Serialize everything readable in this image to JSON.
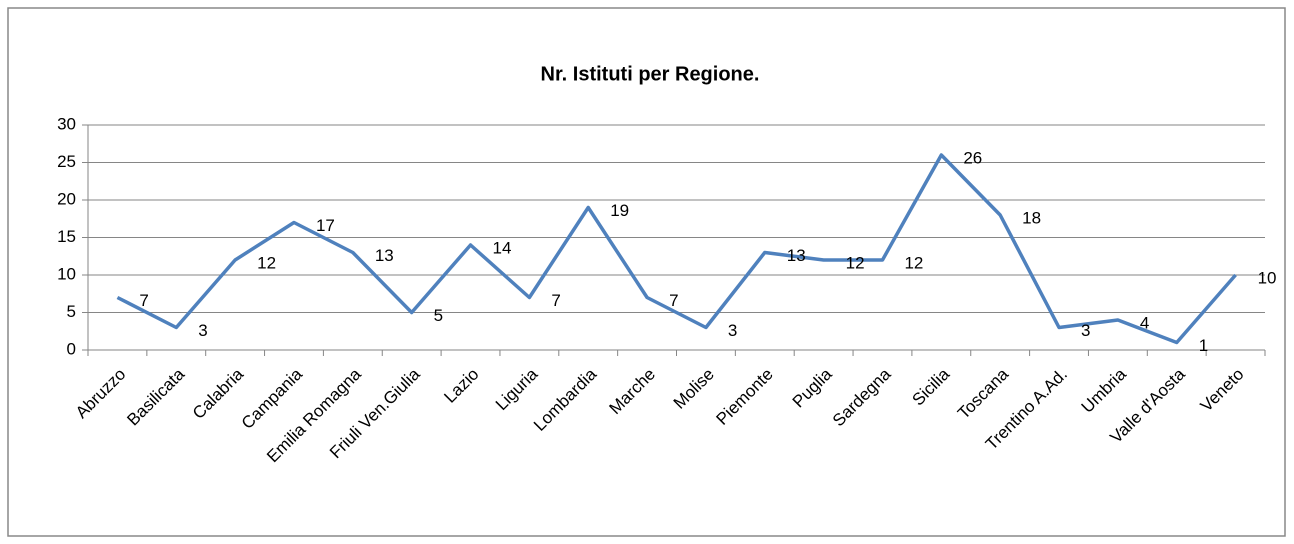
{
  "chart_data": {
    "type": "line",
    "title": "Nr. Istituti per Regione.",
    "categories": [
      "Abruzzo",
      "Basilicata",
      "Calabria",
      "Campania",
      "Emilia Romagna",
      "Friuli Ven.Giulia",
      "Lazio",
      "Liguria",
      "Lombardia",
      "Marche",
      "Molise",
      "Piemonte",
      "Puglia",
      "Sardegna",
      "Sicilia",
      "Toscana",
      "Trentino A.Ad.",
      "Umbria",
      "Valle d'Aosta",
      "Veneto"
    ],
    "values": [
      7,
      3,
      12,
      17,
      13,
      5,
      14,
      7,
      19,
      7,
      3,
      13,
      12,
      12,
      26,
      18,
      3,
      4,
      1,
      10
    ],
    "color": "#4f81bd",
    "ylim": [
      0,
      30
    ],
    "yticks": [
      0,
      5,
      10,
      15,
      20,
      25,
      30
    ],
    "grid": true
  }
}
